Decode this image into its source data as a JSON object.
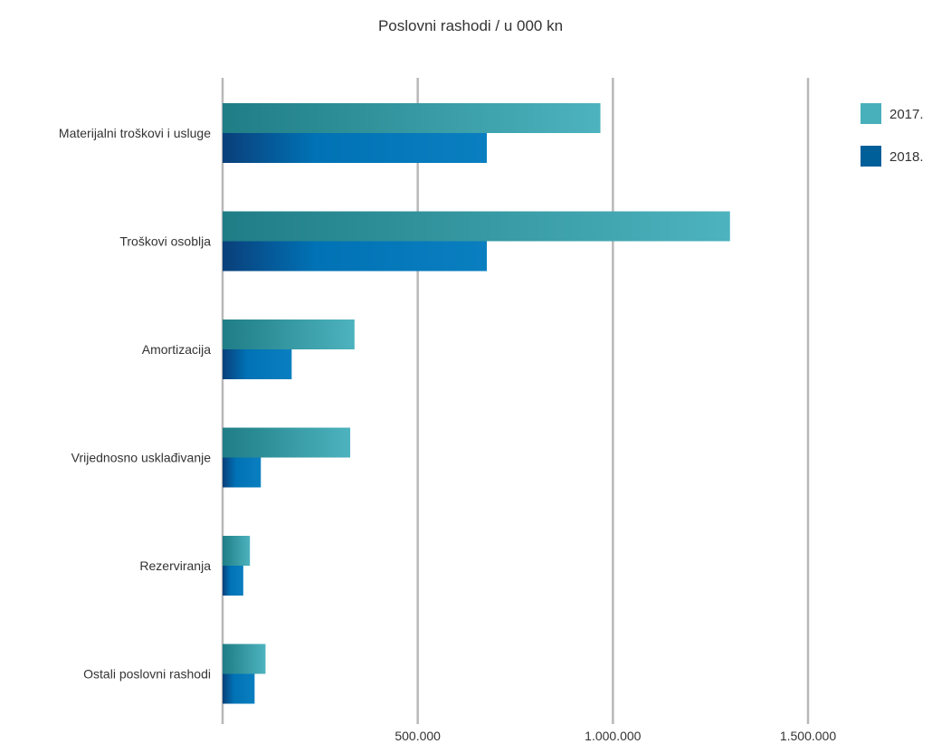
{
  "chart_data": {
    "type": "bar",
    "orientation": "horizontal",
    "title": "Poslovni rashodi / u 000 kn",
    "categories": [
      "Materijalni troškovi i usluge",
      "Troškovi osoblja",
      "Amortizacija",
      "Vrijednosno usklađivanje",
      "Rezerviranja",
      "Ostali poslovni rashodi"
    ],
    "series": [
      {
        "name": "2017.",
        "color": "#47b0bb",
        "values": [
          968000,
          1300000,
          338000,
          327000,
          70000,
          110000
        ]
      },
      {
        "name": "2018.",
        "color": "#005e99",
        "values": [
          677000,
          677000,
          177000,
          98000,
          53000,
          82000
        ]
      }
    ],
    "xlim": [
      0,
      1750000
    ],
    "xticks": [
      {
        "value": 500000,
        "label": "500.000"
      },
      {
        "value": 1000000,
        "label": "1.000.000"
      },
      {
        "value": 1500000,
        "label": "1.500.000"
      }
    ],
    "grid": true,
    "legend_position": "top-right"
  }
}
